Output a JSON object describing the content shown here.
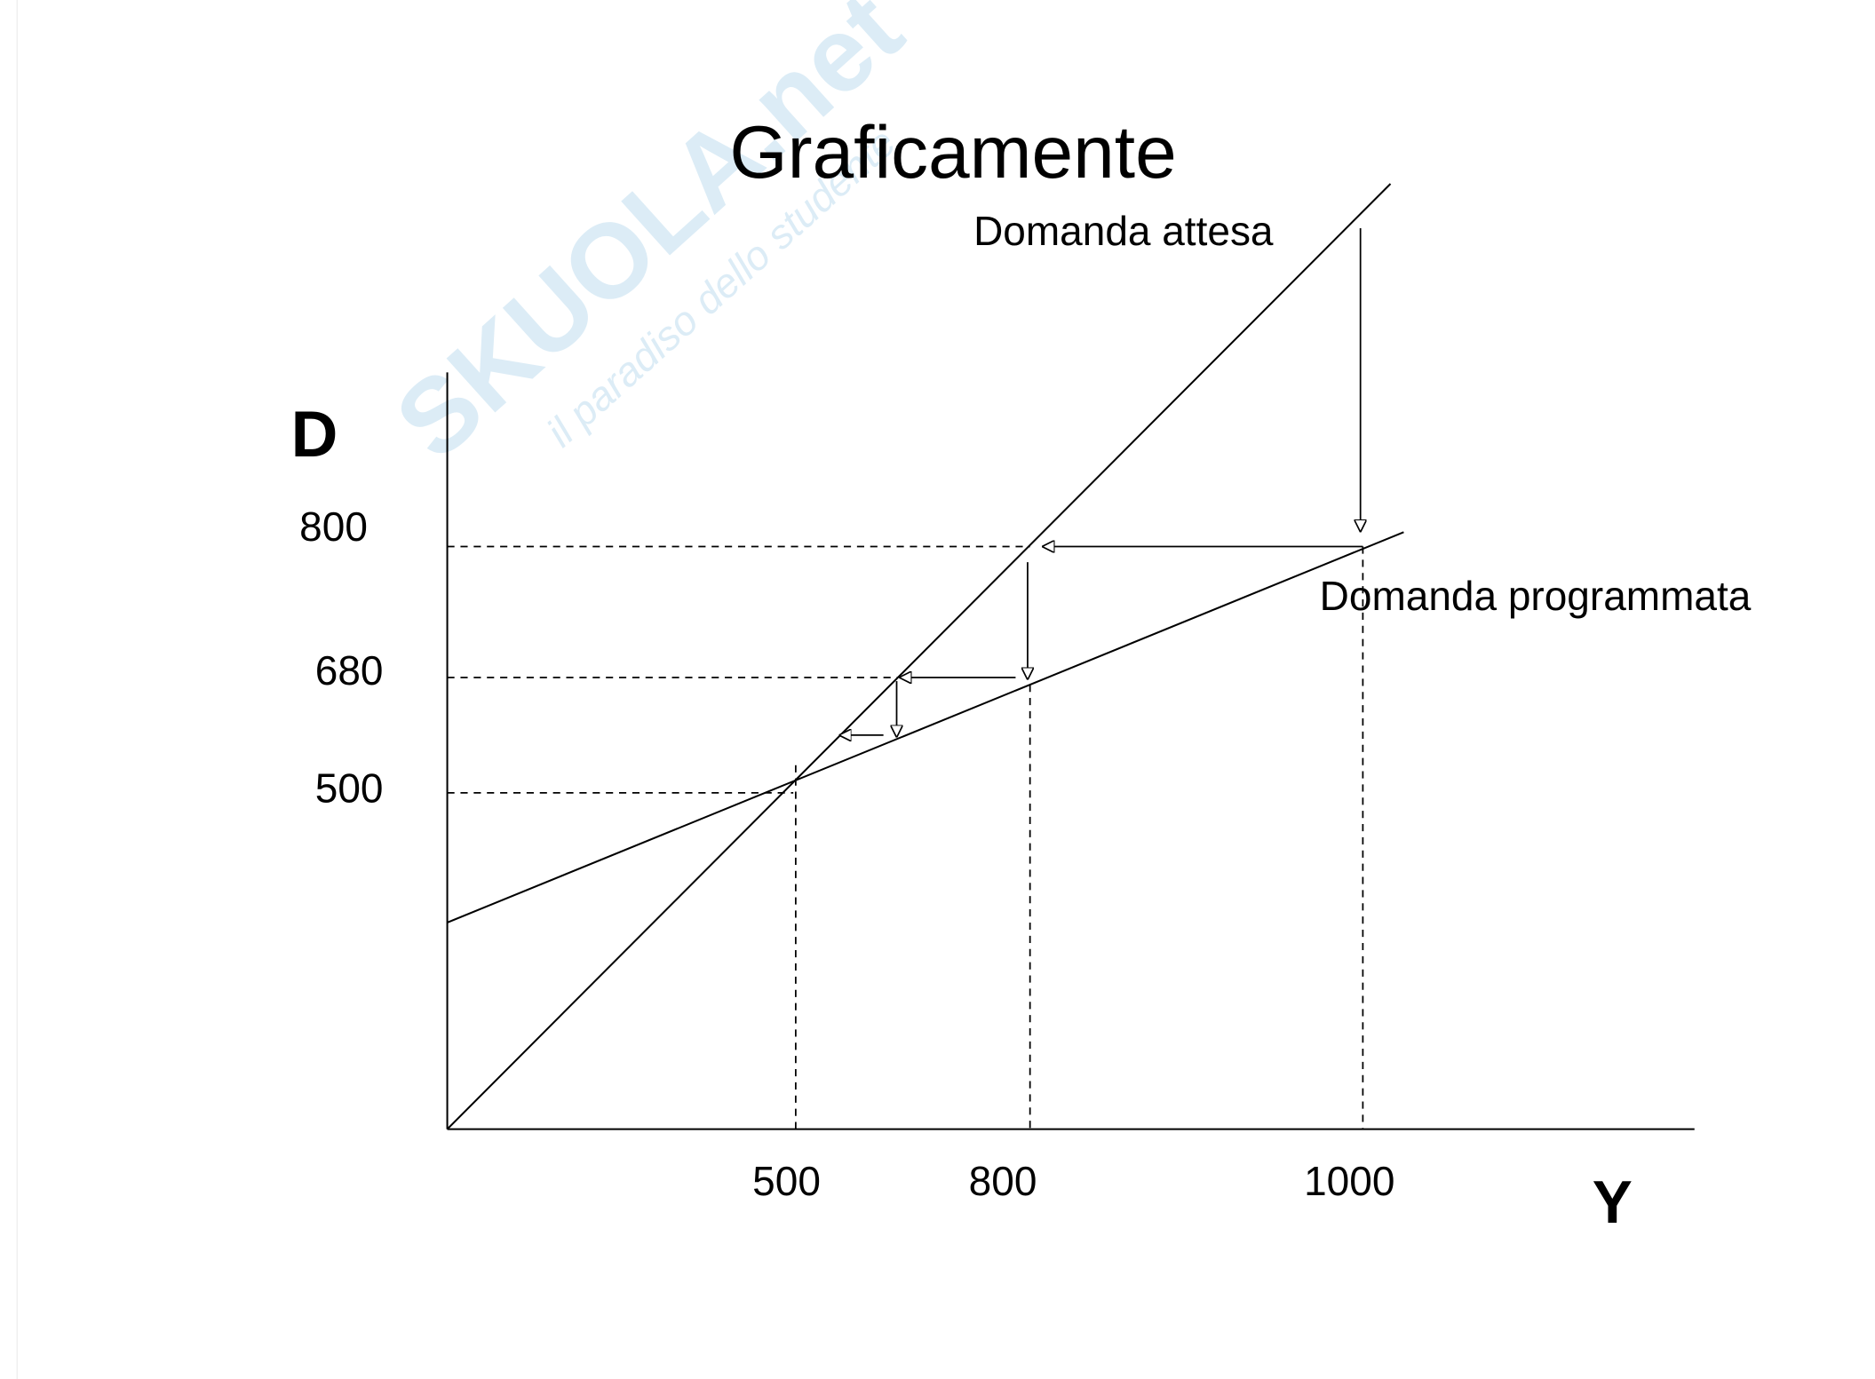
{
  "title": "Graficamente",
  "watermark": {
    "brand": "SKUOLA.net",
    "tagline": "il paradiso dello studente"
  },
  "axes": {
    "y_label": "D",
    "x_label": "Y"
  },
  "y_ticks": [
    "800",
    "680",
    "500"
  ],
  "x_ticks": [
    "500",
    "800",
    "1000"
  ],
  "lines": {
    "expected": "Domanda attesa",
    "planned": "Domanda programmata"
  }
}
